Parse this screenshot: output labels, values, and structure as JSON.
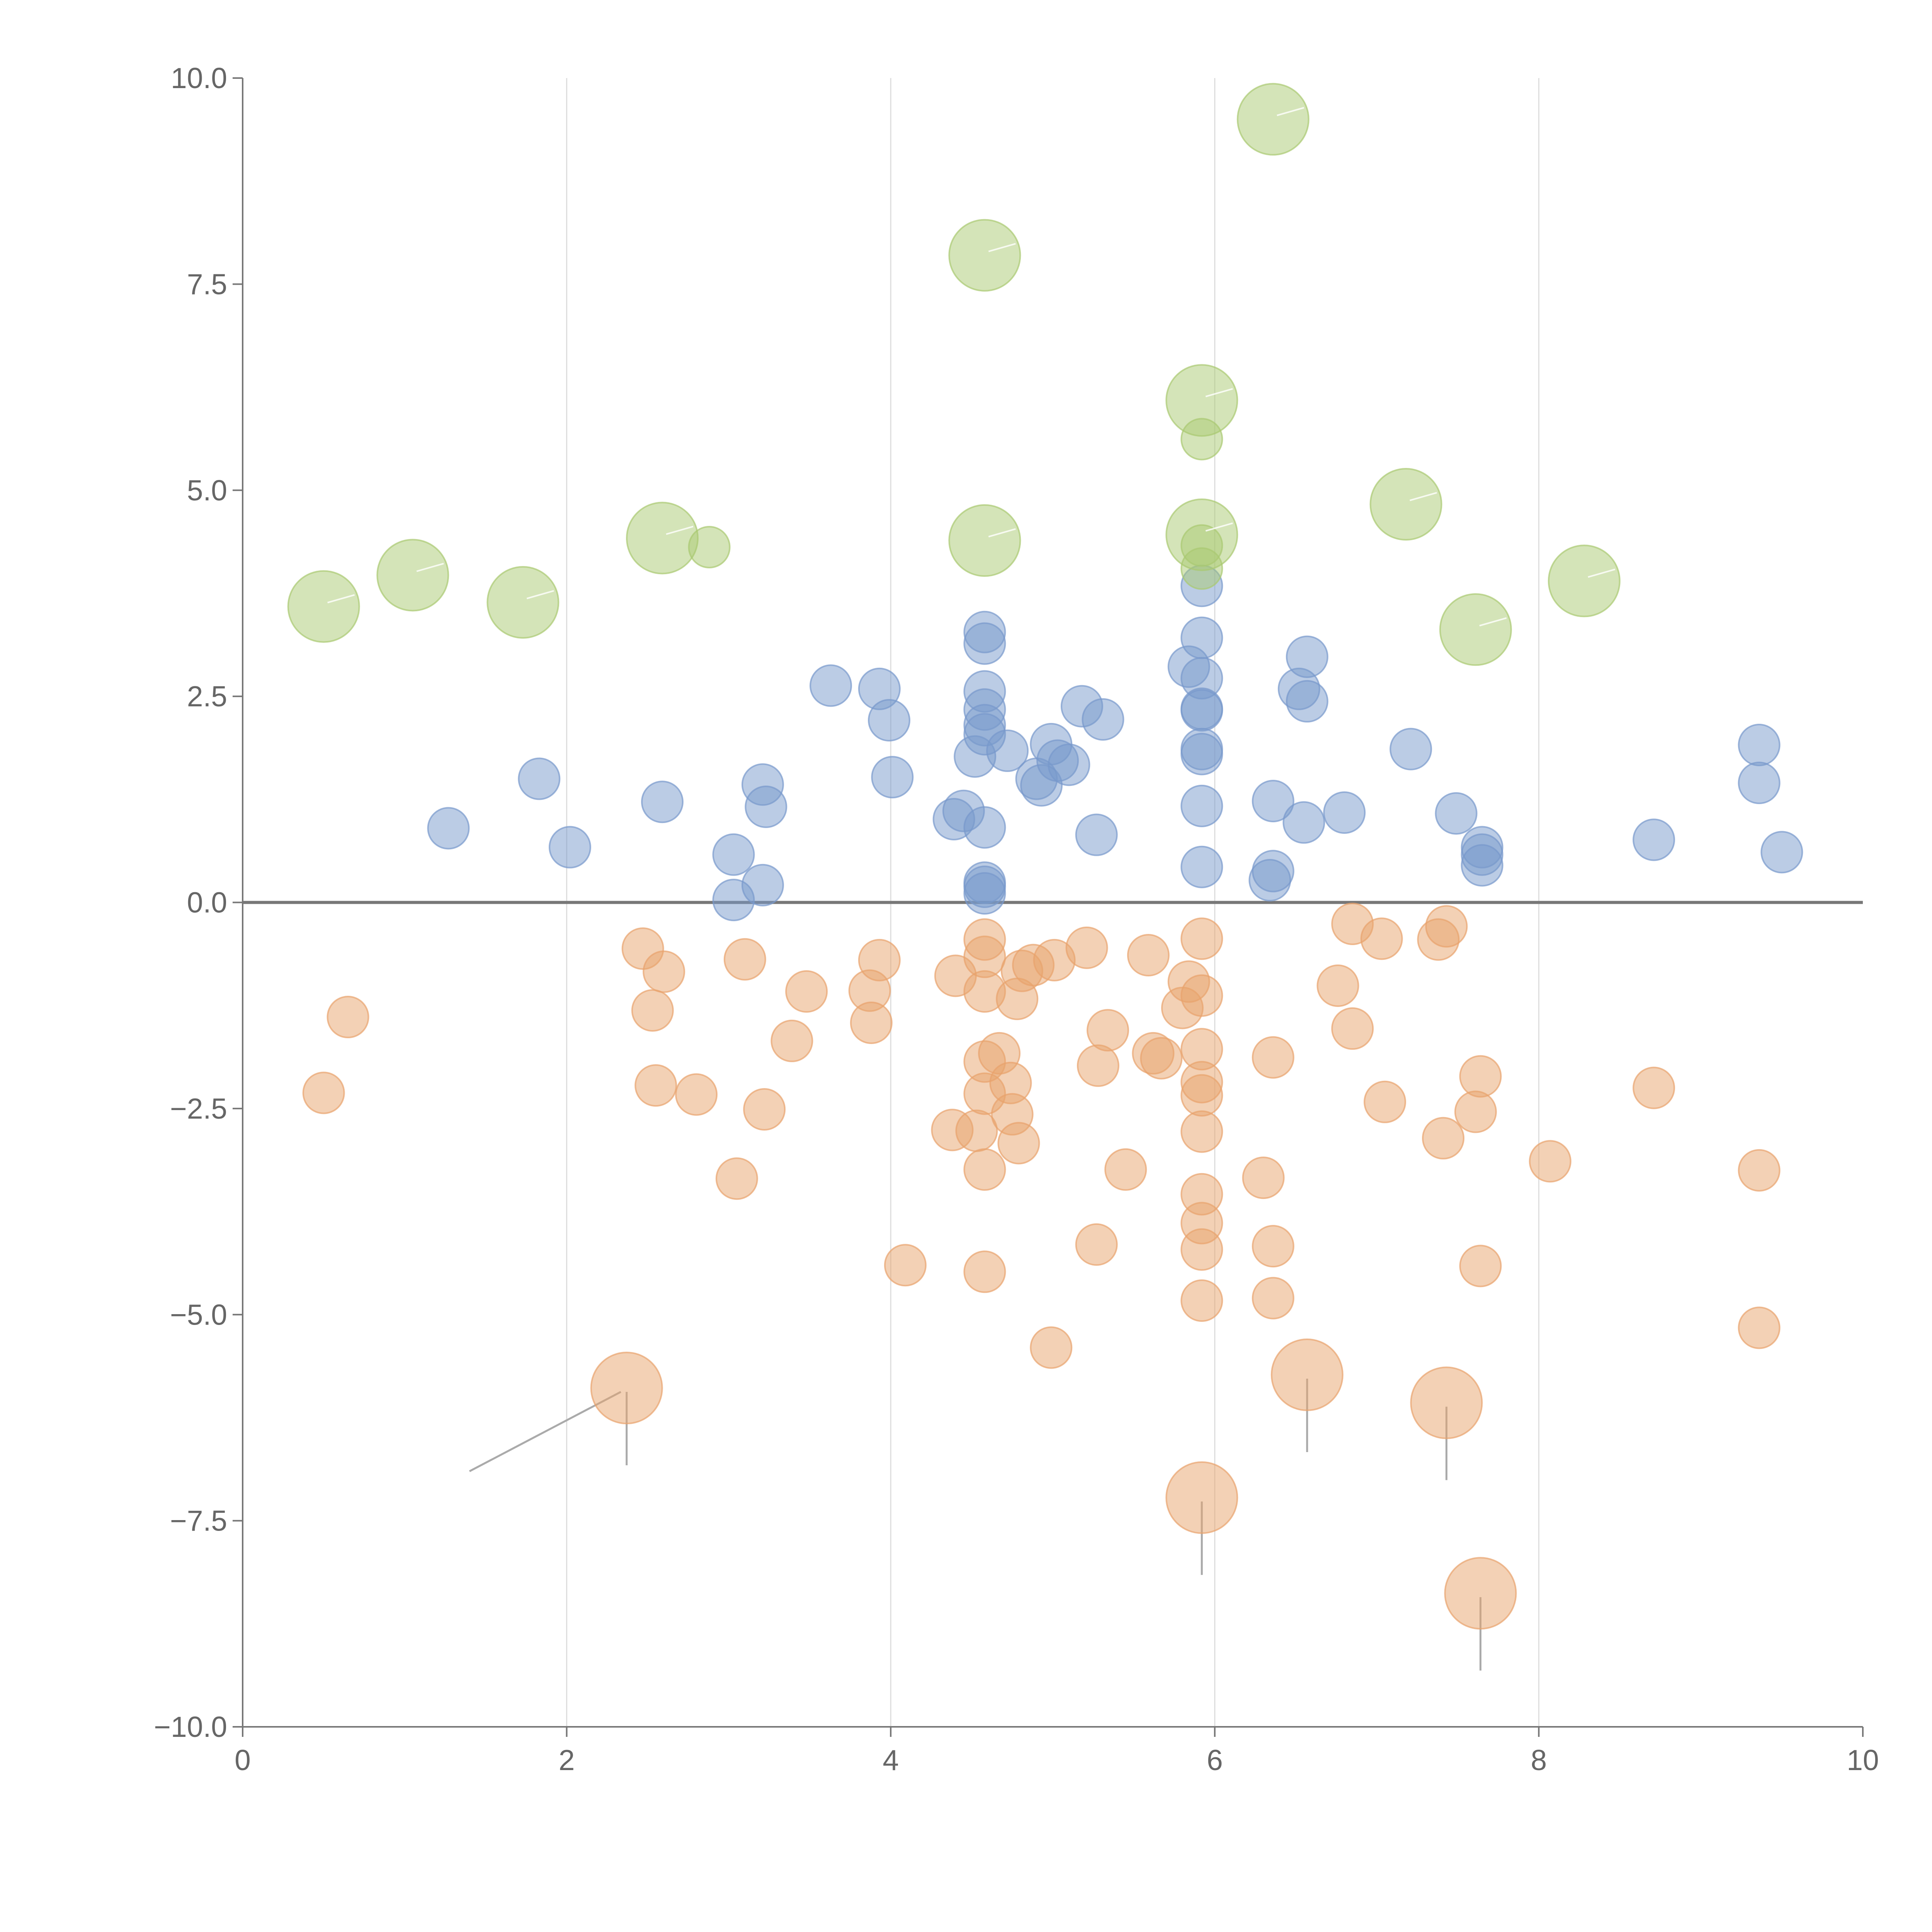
{
  "colors": {
    "positive": "#7799cc",
    "negative": "#e8a36c",
    "highlight": "#a9c971",
    "axis": "#777777",
    "grid": "#dddddd",
    "leader": "#aaaaaa",
    "background": "#ffffff"
  },
  "chart_data": {
    "type": "scatter",
    "title": "",
    "xlabel": "",
    "ylabel": "",
    "xlim": [
      0,
      10
    ],
    "ylim": [
      -10,
      10
    ],
    "x_ticks": [
      0,
      2,
      4,
      6,
      8,
      10
    ],
    "x_tick_labels": [
      "0",
      "2",
      "4",
      "6",
      "8",
      "10"
    ],
    "y_ticks": [
      10,
      7.5,
      5,
      2.5,
      0,
      -2.5,
      -5,
      -7.5,
      -10
    ],
    "y_tick_labels": [
      "10.0",
      "7.5",
      "5.0",
      "2.5",
      "0.0",
      "−2.5",
      "−5.0",
      "−7.5",
      "−10.0"
    ],
    "vertical_grid": [
      2,
      4,
      6,
      8
    ],
    "reference_line_y": 0,
    "series": [
      {
        "name": "positive",
        "color_key": "positive",
        "points": [
          [
            1.27,
            0.9
          ],
          [
            1.83,
            1.5
          ],
          [
            2.02,
            0.67
          ],
          [
            2.59,
            1.22
          ],
          [
            3.03,
            0.58
          ],
          [
            3.03,
            0.03
          ],
          [
            3.21,
            0.21
          ],
          [
            3.21,
            1.43
          ],
          [
            3.23,
            1.16
          ],
          [
            3.63,
            2.63
          ],
          [
            3.93,
            2.59
          ],
          [
            3.99,
            2.21
          ],
          [
            4.01,
            1.52
          ],
          [
            4.39,
            1.01
          ],
          [
            4.45,
            1.11
          ],
          [
            4.52,
            1.77
          ],
          [
            4.58,
            3.28
          ],
          [
            4.58,
            3.14
          ],
          [
            4.58,
            2.56
          ],
          [
            4.58,
            2.34
          ],
          [
            4.58,
            2.15
          ],
          [
            4.58,
            2.04
          ],
          [
            4.58,
            0.91
          ],
          [
            4.58,
            0.24
          ],
          [
            4.58,
            0.19
          ],
          [
            4.58,
            0.11
          ],
          [
            4.72,
            1.84
          ],
          [
            4.9,
            1.5
          ],
          [
            4.93,
            1.42
          ],
          [
            4.99,
            1.92
          ],
          [
            5.03,
            1.72
          ],
          [
            5.1,
            1.67
          ],
          [
            5.18,
            2.38
          ],
          [
            5.27,
            0.82
          ],
          [
            5.31,
            2.22
          ],
          [
            5.84,
            2.86
          ],
          [
            5.92,
            3.84
          ],
          [
            5.92,
            3.21
          ],
          [
            5.92,
            2.72
          ],
          [
            5.92,
            2.35
          ],
          [
            5.92,
            2.33
          ],
          [
            5.92,
            1.86
          ],
          [
            5.92,
            1.8
          ],
          [
            5.92,
            1.17
          ],
          [
            5.92,
            0.43
          ],
          [
            6.34,
            0.27
          ],
          [
            6.36,
            0.38
          ],
          [
            6.36,
            1.23
          ],
          [
            6.52,
            2.59
          ],
          [
            6.55,
            0.97
          ],
          [
            6.57,
            2.98
          ],
          [
            6.57,
            2.44
          ],
          [
            6.8,
            1.09
          ],
          [
            7.21,
            1.86
          ],
          [
            7.49,
            1.08
          ],
          [
            7.65,
            0.67
          ],
          [
            7.65,
            0.58
          ],
          [
            7.65,
            0.45
          ],
          [
            8.71,
            0.76
          ],
          [
            9.36,
            1.91
          ],
          [
            9.36,
            1.45
          ],
          [
            9.5,
            0.61
          ]
        ]
      },
      {
        "name": "negative",
        "color_key": "negative",
        "points": [
          [
            0.5,
            -2.31
          ],
          [
            0.65,
            -1.39
          ],
          [
            2.47,
            -0.56
          ],
          [
            2.53,
            -1.31
          ],
          [
            2.55,
            -2.22
          ],
          [
            2.6,
            -0.84
          ],
          [
            2.8,
            -2.33
          ],
          [
            3.05,
            -3.35
          ],
          [
            3.1,
            -0.69
          ],
          [
            3.22,
            -2.51
          ],
          [
            3.39,
            -1.68
          ],
          [
            3.48,
            -1.08
          ],
          [
            3.87,
            -1.07
          ],
          [
            3.88,
            -1.46
          ],
          [
            3.93,
            -0.7
          ],
          [
            4.09,
            -4.4
          ],
          [
            4.38,
            -2.76
          ],
          [
            4.4,
            -0.89
          ],
          [
            4.53,
            -2.77
          ],
          [
            4.58,
            -4.48
          ],
          [
            4.58,
            -3.24
          ],
          [
            4.58,
            -2.32
          ],
          [
            4.58,
            -1.93
          ],
          [
            4.58,
            -1.08
          ],
          [
            4.58,
            -0.66
          ],
          [
            4.58,
            -0.45
          ],
          [
            4.67,
            -1.83
          ],
          [
            4.74,
            -2.19
          ],
          [
            4.75,
            -2.57
          ],
          [
            4.78,
            -1.17
          ],
          [
            4.79,
            -2.92
          ],
          [
            4.81,
            -0.83
          ],
          [
            4.88,
            -0.76
          ],
          [
            4.99,
            -5.4
          ],
          [
            5.01,
            -0.7
          ],
          [
            5.21,
            -0.55
          ],
          [
            5.27,
            -4.15
          ],
          [
            5.28,
            -1.98
          ],
          [
            5.34,
            -1.55
          ],
          [
            5.45,
            -3.24
          ],
          [
            5.59,
            -0.64
          ],
          [
            5.62,
            -1.83
          ],
          [
            5.67,
            -1.89
          ],
          [
            5.8,
            -1.28
          ],
          [
            5.84,
            -0.96
          ],
          [
            5.92,
            -4.83
          ],
          [
            5.92,
            -4.21
          ],
          [
            5.92,
            -3.89
          ],
          [
            5.92,
            -3.54
          ],
          [
            5.92,
            -2.78
          ],
          [
            5.92,
            -2.34
          ],
          [
            5.92,
            -2.18
          ],
          [
            5.92,
            -1.78
          ],
          [
            5.92,
            -1.13
          ],
          [
            5.92,
            -0.44
          ],
          [
            6.3,
            -3.34
          ],
          [
            6.36,
            -4.8
          ],
          [
            6.36,
            -4.17
          ],
          [
            6.36,
            -1.88
          ],
          [
            6.76,
            -1.01
          ],
          [
            6.85,
            -0.26
          ],
          [
            6.85,
            -1.53
          ],
          [
            7.03,
            -0.44
          ],
          [
            7.05,
            -2.42
          ],
          [
            7.38,
            -0.45
          ],
          [
            7.41,
            -2.86
          ],
          [
            7.43,
            -0.29
          ],
          [
            7.61,
            -2.54
          ],
          [
            7.64,
            -4.41
          ],
          [
            7.64,
            -2.11
          ],
          [
            8.07,
            -3.14
          ],
          [
            8.71,
            -2.25
          ],
          [
            9.36,
            -3.25
          ],
          [
            9.36,
            -5.16
          ]
        ]
      },
      {
        "name": "highlight",
        "color_key": "highlight",
        "points": [
          [
            2.88,
            4.31
          ],
          [
            5.92,
            5.62
          ],
          [
            5.92,
            4.33
          ],
          [
            5.92,
            4.05
          ]
        ]
      },
      {
        "name": "highlight-large",
        "color_key": "highlight",
        "large": true,
        "points": [
          [
            0.5,
            3.59
          ],
          [
            1.05,
            3.97
          ],
          [
            1.73,
            3.64
          ],
          [
            2.59,
            4.42
          ],
          [
            4.58,
            7.85
          ],
          [
            4.58,
            4.39
          ],
          [
            5.92,
            6.09
          ],
          [
            5.92,
            4.46
          ],
          [
            6.36,
            9.5
          ],
          [
            7.18,
            4.83
          ],
          [
            7.61,
            3.31
          ],
          [
            8.28,
            3.9
          ]
        ]
      },
      {
        "name": "negative-large",
        "color_key": "negative",
        "large": true,
        "points": [
          [
            2.37,
            -5.89
          ],
          [
            6.57,
            -5.73
          ],
          [
            7.43,
            -6.07
          ],
          [
            5.92,
            -7.22
          ],
          [
            7.64,
            -8.38
          ]
        ]
      }
    ]
  }
}
